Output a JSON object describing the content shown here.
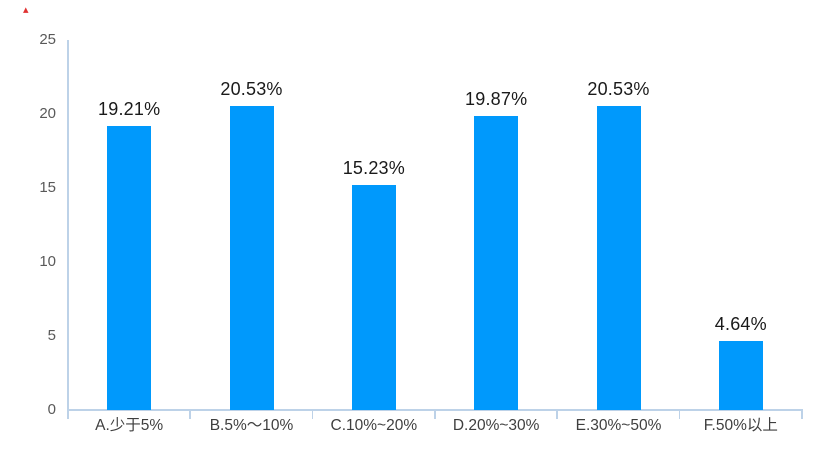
{
  "chart_data": {
    "type": "bar",
    "categories": [
      "A.少于5%",
      "B.5%～10%",
      "C.10%~20%",
      "D.20%~30%",
      "E.30%~50%",
      "F.50%以上"
    ],
    "values": [
      19.21,
      20.53,
      15.23,
      19.87,
      20.53,
      4.64
    ],
    "bar_labels": [
      "19.21%",
      "20.53%",
      "15.23%",
      "19.87%",
      "20.53%",
      "4.64%"
    ],
    "y_ticks": [
      0,
      5,
      10,
      15,
      20,
      25
    ],
    "ylim": [
      0,
      25
    ],
    "title": "",
    "xlabel": "",
    "ylabel": "",
    "grid": false,
    "legend": false,
    "bar_color": "#0099fc",
    "axis_color": "#bdd2e8",
    "value_label_color": "#1a1a1a",
    "y_tick_color": "#595959",
    "x_tick_color": "#3f3f3f"
  },
  "decoration": {
    "corner_mark": "▴",
    "corner_mark_color": "#e03131"
  }
}
